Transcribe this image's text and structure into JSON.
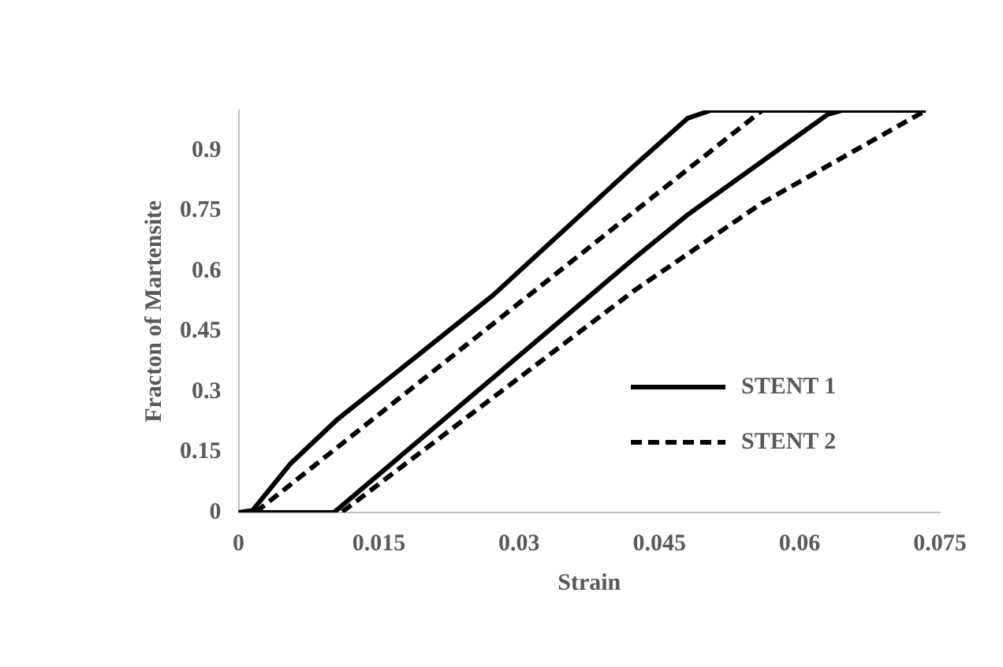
{
  "chart_data": {
    "type": "line",
    "xlabel": "Strain",
    "ylabel": "Fracton of Martensite",
    "xlim": [
      0,
      0.075
    ],
    "xticks": [
      0,
      0.015,
      0.03,
      0.045,
      0.06,
      0.075
    ],
    "ylim": [
      0,
      1
    ],
    "yticks": [
      0,
      0.15,
      0.3,
      0.45,
      0.6,
      0.75,
      0.9
    ],
    "grid": false,
    "legend": "right",
    "marker": "none",
    "series": [
      {
        "name": "STENT 1",
        "color": "#000000",
        "line_style": "solid",
        "x": [
          0,
          0.0015,
          0.0055,
          0.0105,
          0.0272,
          0.0422,
          0.048,
          0.0505,
          0.0735
        ],
        "values": [
          0,
          0.005,
          0.12,
          0.23,
          0.54,
          0.86,
          0.98,
          1,
          1
        ]
      },
      {
        "color": "#000000",
        "line_style": "solid",
        "x": [
          0,
          0.0102,
          0.0422,
          0.048,
          0.063,
          0.0645
        ],
        "values": [
          0,
          0,
          0.63,
          0.74,
          0.99,
          1
        ]
      },
      {
        "name": "STENT 2",
        "color": "#000000",
        "line_style": "dashed",
        "x": [
          0,
          0.0018,
          0.0226,
          0.0422,
          0.056,
          0.0735
        ],
        "values": [
          0,
          0,
          0.384,
          0.746,
          1,
          1
        ]
      },
      {
        "color": "#000000",
        "line_style": "dashed",
        "x": [
          0,
          0.011,
          0.0422,
          0.056,
          0.0735
        ],
        "values": [
          0,
          0,
          0.55,
          0.77,
          1
        ]
      }
    ]
  }
}
